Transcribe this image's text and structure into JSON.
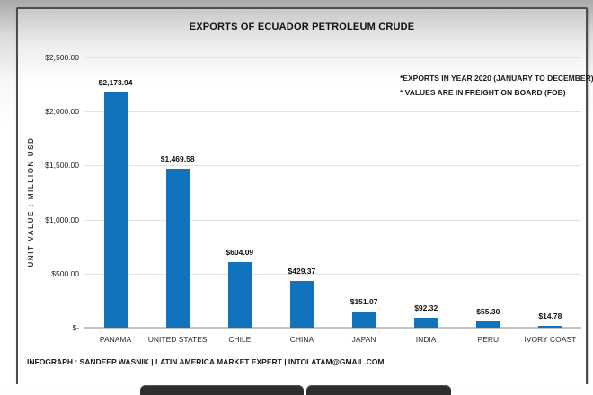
{
  "header": {
    "title": "EXPORTS OF ECUADOR PETROLEUM CRUDE"
  },
  "annotations": {
    "line1": "*EXPORTS IN YEAR 2020 (JANUARY TO DECEMBER)",
    "line2": "* VALUES ARE IN FREIGHT ON BOARD (FOB)"
  },
  "footer": {
    "credit": "INFOGRAPH : SANDEEP WASNIK | LATIN AMERICA MARKET EXPERT | INTOLATAM@GMAIL.COM"
  },
  "colors": {
    "bar_blue": "#1073BB",
    "gridline": "#e4e4e4",
    "axis_line": "#c3c3c3",
    "frame_border": "#4d4d4d",
    "dock_dark": "#2e2e2e"
  },
  "chart_data": {
    "type": "bar",
    "title": "EXPORTS OF ECUADOR PETROLEUM CRUDE",
    "categories": [
      "PANAMA",
      "UNITED STATES",
      "CHILE",
      "CHINA",
      "JAPAN",
      "INDIA",
      "PERU",
      "IVORY COAST"
    ],
    "values": [
      2173.94,
      1469.58,
      604.09,
      429.37,
      151.07,
      92.32,
      55.3,
      14.78
    ],
    "value_labels": [
      "$2,173.94",
      "$1,469.58",
      "$604.09",
      "$429.37",
      "$151.07",
      "$92.32",
      "$55.30",
      "$14.78"
    ],
    "xlabel": "",
    "ylabel": "UNIT VALUE : MILLION USD",
    "ylim": [
      0,
      2500
    ],
    "yticks": [
      {
        "value": 2500,
        "label": "$2,500.00"
      },
      {
        "value": 2000,
        "label": "$2,000.00"
      },
      {
        "value": 1500,
        "label": "$1,500.00"
      },
      {
        "value": 1000,
        "label": "$1,000.00"
      },
      {
        "value": 500,
        "label": "$500.00"
      },
      {
        "value": 0,
        "label": "$-"
      }
    ],
    "grid": true,
    "legend": false,
    "bar_color": "#1073BB",
    "annotations": [
      "*EXPORTS IN YEAR 2020 (JANUARY TO DECEMBER)",
      "* VALUES ARE IN FREIGHT ON BOARD (FOB)"
    ]
  }
}
